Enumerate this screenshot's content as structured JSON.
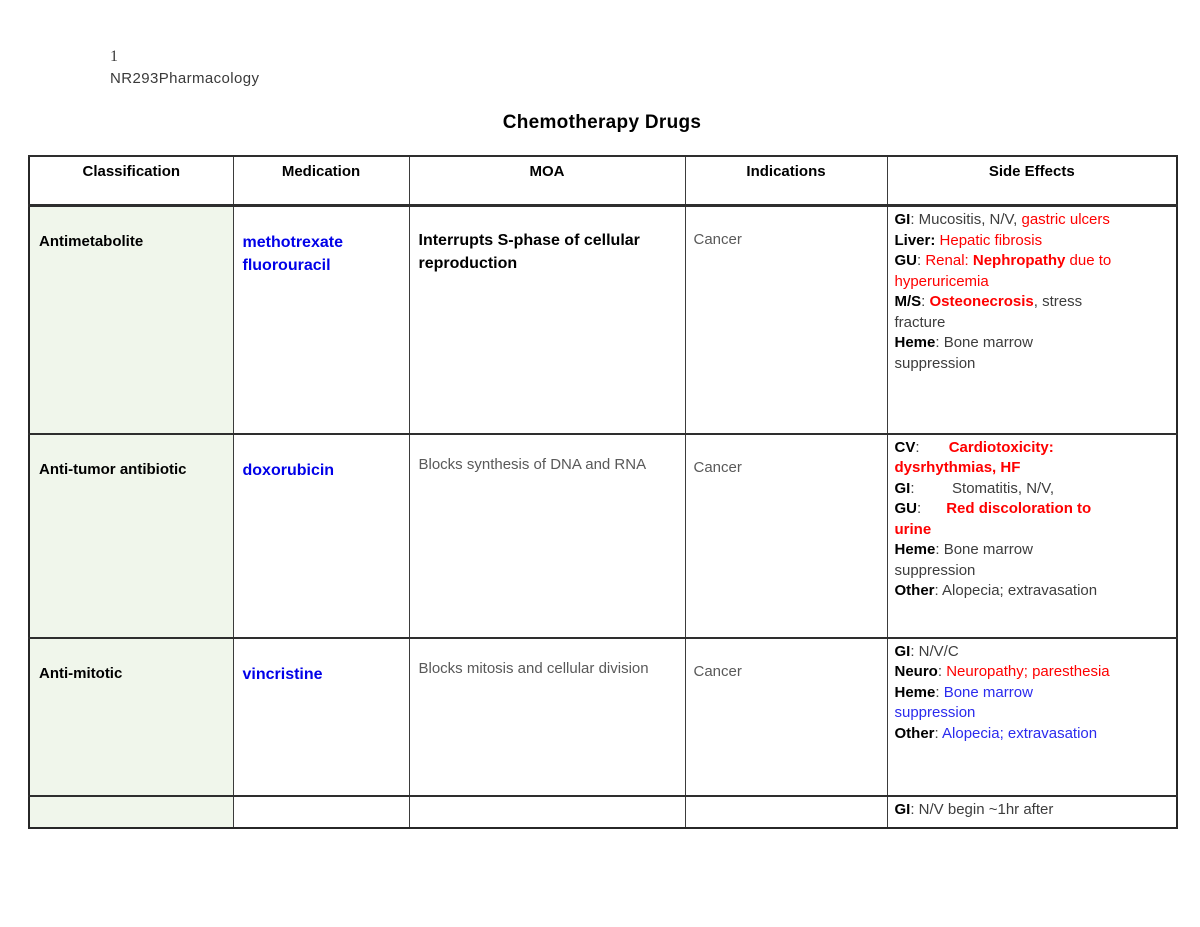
{
  "doc": {
    "page_number": "1",
    "course": "NR293Pharmacology",
    "title": "Chemotherapy Drugs"
  },
  "colors": {
    "label_black": "#000000",
    "body_dark": "#3d3d3d",
    "body_gray": "#595959",
    "red": "#fe0000",
    "blue_medication": "#0101e8",
    "blue_side": "#2b2bee",
    "classification_bg": "#f0f6eb"
  },
  "table": {
    "headers": [
      "Classification",
      "Medication",
      "MOA",
      "Indications",
      "Side Effects"
    ],
    "rows": [
      {
        "classification": "Antimetabolite",
        "medications": [
          "methotrexate",
          "fluorouracil"
        ],
        "moa": {
          "text": "Interrupts S-phase of cellular reproduction",
          "bold": true
        },
        "indications": "Cancer",
        "side_effects": [
          [
            {
              "text": "GI",
              "color": "#000000",
              "bold": true
            },
            {
              "text": ": Mucositis, N/V, ",
              "color": "#3d3d3d",
              "bold": false
            },
            {
              "text": "gastric ulcers",
              "color": "#fe0000",
              "bold": false
            }
          ],
          [
            {
              "text": "Liver:",
              "color": "#000000",
              "bold": true
            },
            {
              "text": " ",
              "color": "#3d3d3d",
              "bold": false
            },
            {
              "text": "Hepatic fibrosis",
              "color": "#fe0000",
              "bold": false
            }
          ],
          [
            {
              "text": "GU",
              "color": "#000000",
              "bold": true
            },
            {
              "text": ": ",
              "color": "#3d3d3d",
              "bold": false
            },
            {
              "text": "Renal: ",
              "color": "#fe0000",
              "bold": false
            },
            {
              "text": "Nephropathy",
              "color": "#fe0000",
              "bold": true
            },
            {
              "text": " due to",
              "color": "#fe0000",
              "bold": false
            }
          ],
          [
            {
              "text": "hyperuricemia",
              "color": "#fe0000",
              "bold": false
            }
          ],
          [
            {
              "text": "M/S",
              "color": "#000000",
              "bold": true
            },
            {
              "text": ": ",
              "color": "#3d3d3d",
              "bold": false
            },
            {
              "text": "Osteonecrosis",
              "color": "#fe0000",
              "bold": true
            },
            {
              "text": ", stress",
              "color": "#3d3d3d",
              "bold": false
            }
          ],
          [
            {
              "text": "fracture",
              "color": "#3d3d3d",
              "bold": false
            }
          ],
          [
            {
              "text": "Heme",
              "color": "#000000",
              "bold": true
            },
            {
              "text": ": Bone marrow",
              "color": "#3d3d3d",
              "bold": false
            }
          ],
          [
            {
              "text": "suppression",
              "color": "#3d3d3d",
              "bold": false
            }
          ]
        ]
      },
      {
        "classification": "Anti-tumor antibiotic",
        "medications": [
          "doxorubicin"
        ],
        "moa": {
          "text": "Blocks synthesis of DNA and RNA",
          "bold": false
        },
        "indications": "Cancer",
        "side_effects": [
          [
            {
              "text": "CV",
              "color": "#000000",
              "bold": true
            },
            {
              "text": ":       ",
              "color": "#3d3d3d",
              "bold": false
            },
            {
              "text": "Cardiotoxicity:",
              "color": "#fe0000",
              "bold": true
            }
          ],
          [
            {
              "text": "dysrhythmias, HF",
              "color": "#fe0000",
              "bold": true
            }
          ],
          [
            {
              "text": "GI",
              "color": "#000000",
              "bold": true
            },
            {
              "text": ":         ",
              "color": "#3d3d3d",
              "bold": false
            },
            {
              "text": "Stomatitis, N/V,",
              "color": "#3d3d3d",
              "bold": false
            }
          ],
          [
            {
              "text": "GU",
              "color": "#000000",
              "bold": true
            },
            {
              "text": ":      ",
              "color": "#3d3d3d",
              "bold": false
            },
            {
              "text": "Red discoloration to",
              "color": "#fe0000",
              "bold": true
            }
          ],
          [
            {
              "text": "urine",
              "color": "#fe0000",
              "bold": true
            }
          ],
          [
            {
              "text": "Heme",
              "color": "#000000",
              "bold": true
            },
            {
              "text": ": Bone marrow",
              "color": "#3d3d3d",
              "bold": false
            }
          ],
          [
            {
              "text": "suppression",
              "color": "#3d3d3d",
              "bold": false
            }
          ],
          [
            {
              "text": "Other",
              "color": "#000000",
              "bold": true
            },
            {
              "text": ": Alopecia; extravasation",
              "color": "#3d3d3d",
              "bold": false
            }
          ]
        ]
      },
      {
        "classification": "Anti-mitotic",
        "medications": [
          "vincristine"
        ],
        "moa": {
          "text": "Blocks mitosis and cellular division",
          "bold": false
        },
        "indications": "Cancer",
        "side_effects": [
          [
            {
              "text": "GI",
              "color": "#000000",
              "bold": true
            },
            {
              "text": ": N/V/C",
              "color": "#3d3d3d",
              "bold": false
            }
          ],
          [
            {
              "text": "Neuro",
              "color": "#000000",
              "bold": true
            },
            {
              "text": ": ",
              "color": "#3d3d3d",
              "bold": false
            },
            {
              "text": "Neuropathy; paresthesia",
              "color": "#fe0000",
              "bold": false
            }
          ],
          [
            {
              "text": "Heme",
              "color": "#000000",
              "bold": true
            },
            {
              "text": ": ",
              "color": "#3d3d3d",
              "bold": false
            },
            {
              "text": "Bone marrow",
              "color": "#2b2bee",
              "bold": false
            }
          ],
          [
            {
              "text": "suppression",
              "color": "#2b2bee",
              "bold": false
            }
          ],
          [
            {
              "text": "Other",
              "color": "#000000",
              "bold": true
            },
            {
              "text": ": ",
              "color": "#3d3d3d",
              "bold": false
            },
            {
              "text": "Alopecia; extravasation",
              "color": "#2b2bee",
              "bold": false
            }
          ]
        ]
      },
      {
        "classification": "",
        "medications": [],
        "moa": {
          "text": "",
          "bold": false
        },
        "indications": "",
        "side_effects": [
          [
            {
              "text": "GI",
              "color": "#000000",
              "bold": true
            },
            {
              "text": ": N/V begin ~1hr after",
              "color": "#3d3d3d",
              "bold": false
            }
          ]
        ]
      }
    ]
  }
}
